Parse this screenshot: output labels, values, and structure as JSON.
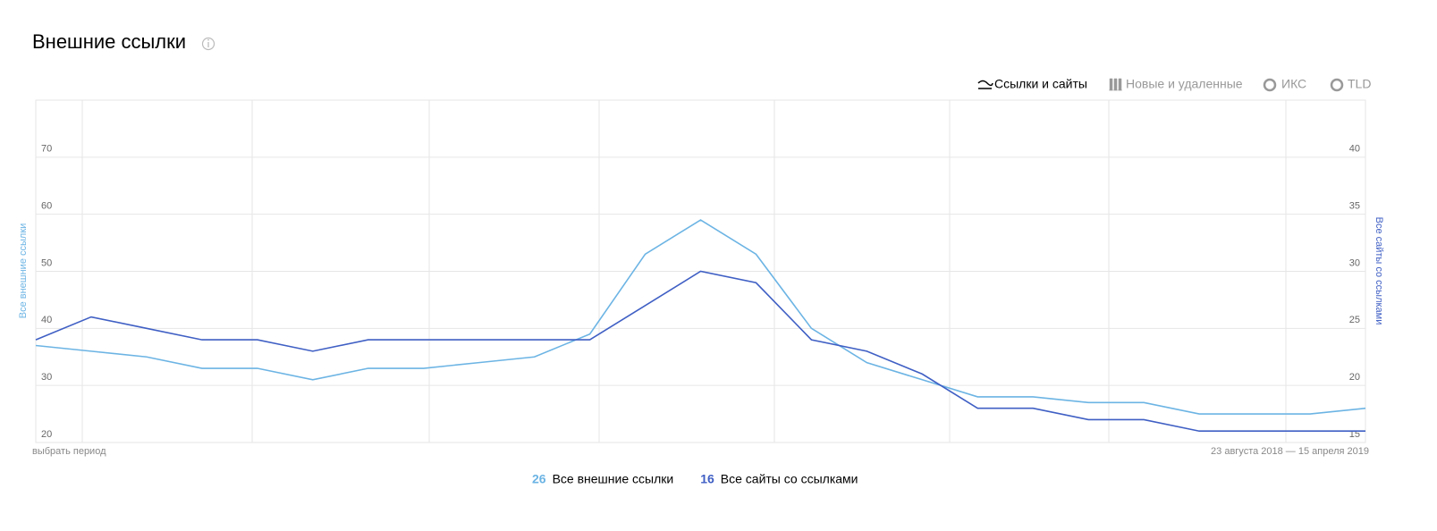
{
  "title": "Внешние ссылки",
  "tabs": [
    "Ссылки и сайты",
    "Новые и удаленные",
    "ИКС",
    "TLD"
  ],
  "period_link": "выбрать период",
  "period_range": "23 августа 2018 — 15 апреля 2019",
  "chart_data": {
    "type": "line",
    "categories": [
      null,
      null,
      null,
      null,
      null,
      null,
      null,
      null,
      null,
      null,
      null,
      null,
      null,
      null,
      null,
      null,
      null,
      null,
      null,
      null,
      null,
      null,
      null,
      null,
      null
    ],
    "ylabel": "Все внешние ссылки",
    "y2label": "Все сайты со ссылками",
    "ylim": [
      20,
      80
    ],
    "yticks": [
      20,
      30,
      40,
      50,
      60,
      70
    ],
    "y2lim": [
      15,
      45
    ],
    "y2ticks": [
      15,
      20,
      25,
      30,
      35,
      40
    ],
    "grid": true,
    "series": [
      {
        "name": "Все внешние ссылки",
        "color": "#6cb4e4",
        "values": [
          37,
          36,
          35,
          33,
          33,
          31,
          33,
          33,
          34,
          35,
          39,
          53,
          59,
          53,
          40,
          34,
          31,
          28,
          28,
          27,
          27,
          25,
          25,
          25,
          26
        ]
      },
      {
        "name": "Все сайты со ссылками",
        "color": "#3f5fc4",
        "axis": "y2",
        "values": [
          24,
          26,
          25,
          24,
          24,
          23,
          24,
          24,
          24,
          24,
          24,
          27,
          30,
          29,
          24,
          23,
          21,
          18,
          18,
          17,
          17,
          16,
          16,
          16,
          16
        ]
      }
    ]
  }
}
